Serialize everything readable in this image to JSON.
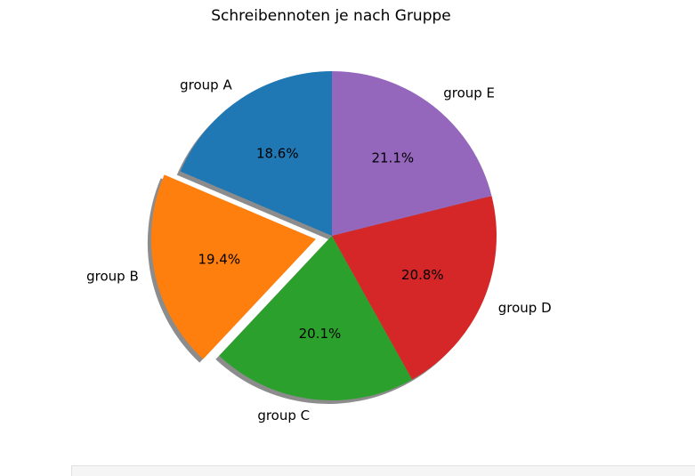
{
  "chart_data": {
    "type": "pie",
    "title": "Schreibennoten je nach Gruppe",
    "categories": [
      "group A",
      "group B",
      "group C",
      "group D",
      "group E"
    ],
    "values": [
      18.6,
      19.4,
      20.1,
      20.8,
      21.1
    ],
    "percent_labels": [
      "18.6%",
      "19.4%",
      "20.1%",
      "20.8%",
      "21.1%"
    ],
    "colors": [
      "#1f77b4",
      "#ff7f0e",
      "#2ca02c",
      "#d62728",
      "#9467bd"
    ],
    "exploded": [
      "group B"
    ],
    "shadow": true,
    "start_angle_deg": 90,
    "direction": "counterclockwise"
  }
}
